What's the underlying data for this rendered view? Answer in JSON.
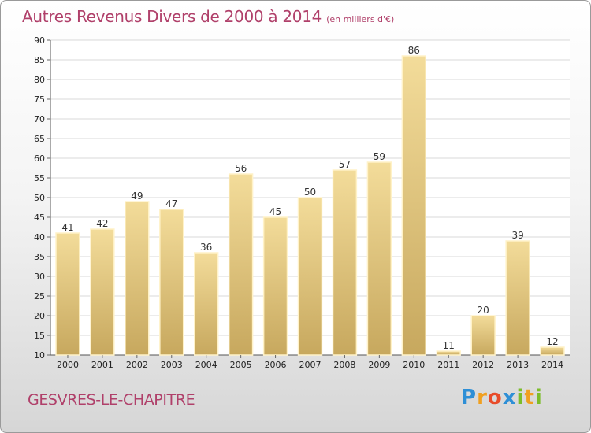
{
  "header": {
    "title": "Autres Revenus Divers de 2000 à 2014",
    "subtitle": "(en milliers d'€)"
  },
  "footer": {
    "place": "GESVRES-LE-CHAPITRE"
  },
  "logo": {
    "text": "Proxiti",
    "letters": [
      {
        "ch": "P",
        "color": "#2e8fd6"
      },
      {
        "ch": "r",
        "color": "#f0a020"
      },
      {
        "ch": "o",
        "color": "#e84c2a"
      },
      {
        "ch": "x",
        "color": "#2e8fd6"
      },
      {
        "ch": "i",
        "color": "#7cbd2a"
      },
      {
        "ch": "t",
        "color": "#f0a020"
      },
      {
        "ch": "i",
        "color": "#7cbd2a"
      }
    ]
  },
  "colors": {
    "bar_light": "#f3dc9a",
    "bar_dark": "#c7a85e",
    "grid": "#d8d8d8",
    "title": "#b0406a"
  },
  "chart_data": {
    "type": "bar",
    "title": "Autres Revenus Divers de 2000 à 2014",
    "categories": [
      "2000",
      "2001",
      "2002",
      "2003",
      "2004",
      "2005",
      "2006",
      "2007",
      "2008",
      "2009",
      "2010",
      "2011",
      "2012",
      "2013",
      "2014"
    ],
    "values": [
      41,
      42,
      49,
      47,
      36,
      56,
      45,
      50,
      57,
      59,
      86,
      11,
      20,
      39,
      12
    ],
    "ylim": [
      10,
      90
    ],
    "yticks": [
      10,
      15,
      20,
      25,
      30,
      35,
      40,
      45,
      50,
      55,
      60,
      65,
      70,
      75,
      80,
      85,
      90
    ],
    "grid": true
  }
}
